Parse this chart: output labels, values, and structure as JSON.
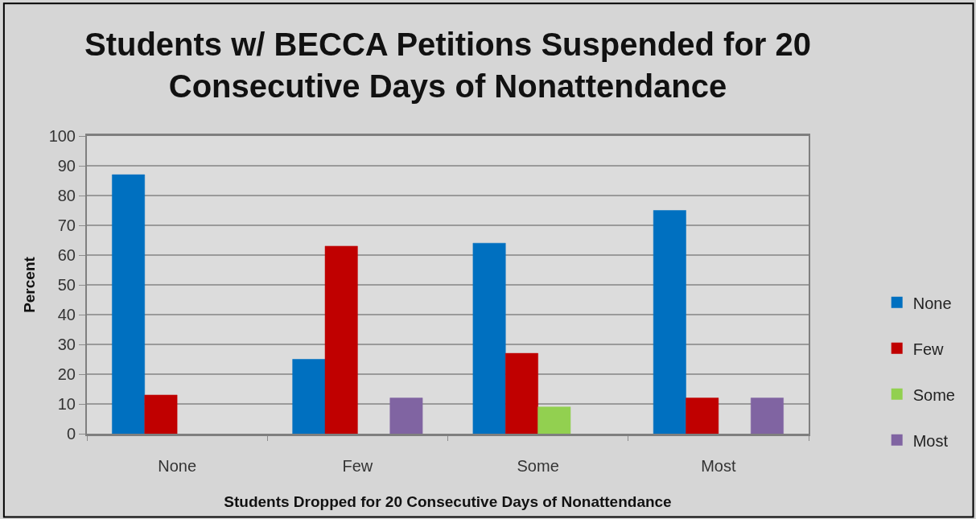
{
  "chart_data": {
    "type": "bar",
    "title": "Students w/ BECCA Petitions Suspended for 20\nConsecutive Days of Nonattendance",
    "xlabel": "Students Dropped for 20 Consecutive Days of Nonattendance",
    "ylabel": "Percent",
    "categories": [
      "None",
      "Few",
      "Some",
      "Most"
    ],
    "series": [
      {
        "name": "None",
        "color": "#0070c0",
        "values": [
          87,
          25,
          64,
          75
        ]
      },
      {
        "name": "Few",
        "color": "#c00000",
        "values": [
          13,
          63,
          27,
          12
        ]
      },
      {
        "name": "Some",
        "color": "#92d050",
        "values": [
          null,
          null,
          9,
          null
        ]
      },
      {
        "name": "Most",
        "color": "#8064a2",
        "values": [
          null,
          12,
          null,
          12
        ]
      }
    ],
    "ylim": [
      0,
      100
    ],
    "yticks": [
      0,
      10,
      20,
      30,
      40,
      50,
      60,
      70,
      80,
      90,
      100
    ],
    "grid": "y",
    "legend": "right"
  }
}
